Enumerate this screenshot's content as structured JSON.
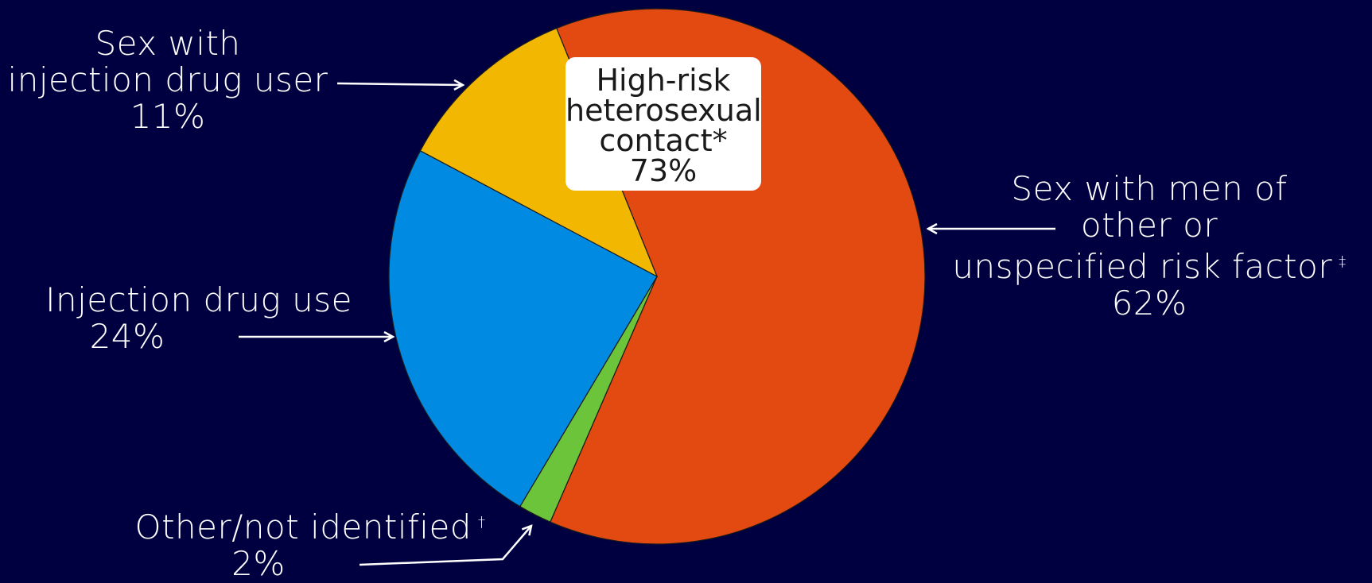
{
  "chart_data": {
    "type": "pie",
    "categories": [
      "Sex with men of other or unspecified risk factor",
      "Other/not identified",
      "Injection drug use",
      "Sex with injection drug user"
    ],
    "values": [
      62,
      2,
      24,
      11
    ],
    "colors": [
      "#e24a12",
      "#6cc43a",
      "#008ae2",
      "#f2b700"
    ],
    "grouping": {
      "label_lines": [
        "High-risk",
        "heterosexual",
        "contact*"
      ],
      "value_text": "73%",
      "members": [
        "Sex with injection drug user",
        "Sex with men of other or unspecified risk factor"
      ]
    },
    "labels": [
      {
        "key": "msm",
        "lines": [
          "Sex with men of",
          "other or",
          "unspecified risk factor"
        ],
        "footnote": "‡",
        "value_text": "62%"
      },
      {
        "key": "other",
        "lines": [
          "Other/not identified"
        ],
        "footnote": "†",
        "value_text": "2%"
      },
      {
        "key": "idu",
        "lines": [
          "Injection drug use"
        ],
        "footnote": "",
        "value_text": "24%"
      },
      {
        "key": "sexidu",
        "lines": [
          "Sex with",
          "injection drug user"
        ],
        "footnote": "",
        "value_text": "11%"
      }
    ]
  }
}
